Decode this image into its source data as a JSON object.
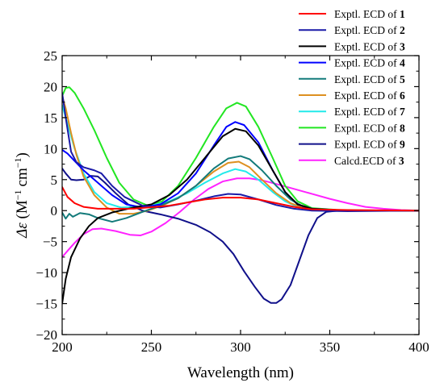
{
  "chart_data": {
    "type": "line",
    "xlabel": "Wavelength (nm)",
    "ylabel_symbol": "Δε",
    "ylabel_unit_1": "M",
    "ylabel_exp_1": "−1",
    "ylabel_unit_2": "cm",
    "ylabel_exp_2": "−1",
    "xlim": [
      200,
      400
    ],
    "ylim": [
      -20,
      25
    ],
    "x_ticks": [
      200,
      250,
      300,
      350,
      400
    ],
    "y_ticks": [
      -20,
      -15,
      -10,
      -5,
      0,
      5,
      10,
      15,
      20,
      25
    ],
    "x_tick_labels": [
      "200",
      "250",
      "300",
      "350",
      "400"
    ],
    "y_tick_labels": [
      "−20",
      "−15",
      "−10",
      "−5",
      "0",
      "5",
      "10",
      "15",
      "20",
      "25"
    ],
    "grid": false,
    "legend_position": "top-right",
    "series": [
      {
        "name": "Exptl. ECD of ",
        "bold": "1",
        "color": "#ff0000",
        "points": [
          [
            200,
            3.8
          ],
          [
            203,
            2.2
          ],
          [
            207,
            1.2
          ],
          [
            212,
            0.6
          ],
          [
            220,
            0.3
          ],
          [
            240,
            0.3
          ],
          [
            260,
            0.8
          ],
          [
            280,
            1.8
          ],
          [
            290,
            2.1
          ],
          [
            300,
            2.1
          ],
          [
            310,
            1.8
          ],
          [
            320,
            1.2
          ],
          [
            330,
            0.6
          ],
          [
            340,
            0.2
          ],
          [
            360,
            0.1
          ],
          [
            400,
            0.0
          ]
        ]
      },
      {
        "name": "Exptl. ECD of ",
        "bold": "2",
        "color": "#1a1aa8",
        "points": [
          [
            200,
            19.0
          ],
          [
            202,
            15.0
          ],
          [
            205,
            9.5
          ],
          [
            208,
            7.8
          ],
          [
            212,
            7.0
          ],
          [
            218,
            6.5
          ],
          [
            222,
            6.0
          ],
          [
            228,
            4.0
          ],
          [
            235,
            2.2
          ],
          [
            245,
            0.8
          ],
          [
            255,
            0.5
          ],
          [
            265,
            1.0
          ],
          [
            275,
            1.6
          ],
          [
            285,
            2.3
          ],
          [
            293,
            2.7
          ],
          [
            300,
            2.6
          ],
          [
            310,
            1.8
          ],
          [
            320,
            0.9
          ],
          [
            330,
            0.3
          ],
          [
            340,
            0.0
          ],
          [
            360,
            -0.1
          ],
          [
            400,
            0.0
          ]
        ]
      },
      {
        "name": "Exptl. ECD of ",
        "bold": "3",
        "color": "#000000",
        "points": [
          [
            200,
            -15.0
          ],
          [
            202,
            -11.0
          ],
          [
            205,
            -7.5
          ],
          [
            210,
            -4.5
          ],
          [
            215,
            -2.5
          ],
          [
            220,
            -1.2
          ],
          [
            228,
            -0.3
          ],
          [
            240,
            0.5
          ],
          [
            250,
            1.0
          ],
          [
            260,
            2.5
          ],
          [
            270,
            5.0
          ],
          [
            280,
            8.5
          ],
          [
            290,
            12.0
          ],
          [
            297,
            13.2
          ],
          [
            303,
            12.8
          ],
          [
            310,
            10.5
          ],
          [
            318,
            6.5
          ],
          [
            325,
            3.0
          ],
          [
            332,
            1.0
          ],
          [
            340,
            0.3
          ],
          [
            360,
            0.0
          ],
          [
            400,
            0.0
          ]
        ]
      },
      {
        "name": "Exptl. ECD of ",
        "bold": "4",
        "color": "#0000ff",
        "points": [
          [
            200,
            9.8
          ],
          [
            203,
            9.2
          ],
          [
            207,
            8.0
          ],
          [
            212,
            6.5
          ],
          [
            220,
            4.5
          ],
          [
            228,
            2.5
          ],
          [
            236,
            1.0
          ],
          [
            245,
            0.5
          ],
          [
            255,
            1.0
          ],
          [
            265,
            2.8
          ],
          [
            275,
            6.0
          ],
          [
            285,
            10.5
          ],
          [
            292,
            13.5
          ],
          [
            297,
            14.3
          ],
          [
            302,
            13.8
          ],
          [
            310,
            11.0
          ],
          [
            318,
            6.5
          ],
          [
            325,
            3.0
          ],
          [
            332,
            1.0
          ],
          [
            340,
            0.3
          ],
          [
            360,
            0.0
          ],
          [
            400,
            0.0
          ]
        ]
      },
      {
        "name": "Exptl. ECD of ",
        "bold": "5",
        "color": "#127a7a",
        "points": [
          [
            200,
            -0.3
          ],
          [
            202,
            -1.3
          ],
          [
            204,
            -0.5
          ],
          [
            206,
            -1.0
          ],
          [
            210,
            -0.4
          ],
          [
            215,
            -0.6
          ],
          [
            220,
            -1.2
          ],
          [
            228,
            -1.8
          ],
          [
            236,
            -1.2
          ],
          [
            245,
            -0.2
          ],
          [
            255,
            0.8
          ],
          [
            265,
            2.0
          ],
          [
            275,
            4.0
          ],
          [
            285,
            6.8
          ],
          [
            293,
            8.4
          ],
          [
            300,
            8.8
          ],
          [
            305,
            8.3
          ],
          [
            312,
            6.5
          ],
          [
            320,
            4.0
          ],
          [
            328,
            1.8
          ],
          [
            336,
            0.5
          ],
          [
            345,
            0.1
          ],
          [
            360,
            0.0
          ],
          [
            400,
            0.0
          ]
        ]
      },
      {
        "name": "Exptl. ECD of ",
        "bold": "6",
        "color": "#dd9020",
        "points": [
          [
            200,
            18.5
          ],
          [
            202,
            16.5
          ],
          [
            205,
            12.5
          ],
          [
            208,
            9.0
          ],
          [
            212,
            5.5
          ],
          [
            218,
            2.5
          ],
          [
            225,
            0.5
          ],
          [
            232,
            -0.5
          ],
          [
            240,
            -0.5
          ],
          [
            248,
            0.0
          ],
          [
            256,
            0.8
          ],
          [
            265,
            2.0
          ],
          [
            275,
            4.0
          ],
          [
            285,
            6.3
          ],
          [
            293,
            7.7
          ],
          [
            299,
            7.9
          ],
          [
            305,
            7.0
          ],
          [
            312,
            5.0
          ],
          [
            320,
            2.8
          ],
          [
            328,
            1.2
          ],
          [
            336,
            0.4
          ],
          [
            345,
            0.1
          ],
          [
            360,
            0.0
          ],
          [
            400,
            0.0
          ]
        ]
      },
      {
        "name": "Exptl. ECD of ",
        "bold": "7",
        "color": "#22eaea",
        "points": [
          [
            200,
            17.0
          ],
          [
            203,
            14.0
          ],
          [
            207,
            10.0
          ],
          [
            212,
            6.0
          ],
          [
            218,
            3.0
          ],
          [
            225,
            1.2
          ],
          [
            233,
            0.5
          ],
          [
            240,
            0.6
          ],
          [
            250,
            0.8
          ],
          [
            260,
            1.5
          ],
          [
            270,
            2.8
          ],
          [
            280,
            4.5
          ],
          [
            290,
            6.0
          ],
          [
            297,
            6.7
          ],
          [
            303,
            6.3
          ],
          [
            310,
            5.0
          ],
          [
            318,
            3.0
          ],
          [
            325,
            1.5
          ],
          [
            332,
            0.6
          ],
          [
            340,
            0.2
          ],
          [
            360,
            0.0
          ],
          [
            400,
            0.0
          ]
        ]
      },
      {
        "name": "Exptl. ECD of ",
        "bold": "8",
        "color": "#22e622",
        "points": [
          [
            200,
            18.5
          ],
          [
            202,
            19.8
          ],
          [
            204,
            19.9
          ],
          [
            207,
            19.0
          ],
          [
            212,
            16.5
          ],
          [
            218,
            13.0
          ],
          [
            225,
            8.5
          ],
          [
            232,
            4.5
          ],
          [
            240,
            1.8
          ],
          [
            248,
            0.8
          ],
          [
            256,
            1.5
          ],
          [
            265,
            4.0
          ],
          [
            275,
            8.5
          ],
          [
            285,
            13.5
          ],
          [
            292,
            16.5
          ],
          [
            298,
            17.4
          ],
          [
            303,
            16.8
          ],
          [
            310,
            13.5
          ],
          [
            318,
            8.5
          ],
          [
            325,
            4.0
          ],
          [
            332,
            1.5
          ],
          [
            340,
            0.4
          ],
          [
            360,
            0.0
          ],
          [
            400,
            0.0
          ]
        ]
      },
      {
        "name": "Exptl. ECD of ",
        "bold": "9",
        "color": "#10108a",
        "points": [
          [
            200,
            6.8
          ],
          [
            202,
            6.0
          ],
          [
            205,
            5.0
          ],
          [
            208,
            4.9
          ],
          [
            212,
            5.0
          ],
          [
            216,
            5.6
          ],
          [
            220,
            5.5
          ],
          [
            224,
            4.5
          ],
          [
            230,
            2.8
          ],
          [
            237,
            1.0
          ],
          [
            245,
            0.0
          ],
          [
            255,
            -0.6
          ],
          [
            265,
            -1.3
          ],
          [
            275,
            -2.3
          ],
          [
            283,
            -3.5
          ],
          [
            290,
            -5.0
          ],
          [
            296,
            -7.0
          ],
          [
            302,
            -9.8
          ],
          [
            308,
            -12.3
          ],
          [
            313,
            -14.2
          ],
          [
            317,
            -14.9
          ],
          [
            320,
            -14.9
          ],
          [
            323,
            -14.3
          ],
          [
            328,
            -12.0
          ],
          [
            333,
            -8.0
          ],
          [
            338,
            -4.0
          ],
          [
            343,
            -1.2
          ],
          [
            348,
            -0.2
          ],
          [
            355,
            0.0
          ],
          [
            400,
            0.0
          ]
        ]
      },
      {
        "name": "Calcd.ECD of ",
        "bold": "3",
        "color": "#ff22ff",
        "points": [
          [
            200,
            -7.5
          ],
          [
            203,
            -6.5
          ],
          [
            207,
            -5.2
          ],
          [
            212,
            -3.8
          ],
          [
            217,
            -3.0
          ],
          [
            222,
            -2.9
          ],
          [
            230,
            -3.3
          ],
          [
            238,
            -3.9
          ],
          [
            244,
            -4.0
          ],
          [
            250,
            -3.4
          ],
          [
            258,
            -2.0
          ],
          [
            266,
            -0.2
          ],
          [
            274,
            1.8
          ],
          [
            282,
            3.5
          ],
          [
            290,
            4.7
          ],
          [
            298,
            5.2
          ],
          [
            305,
            5.2
          ],
          [
            312,
            4.9
          ],
          [
            320,
            4.3
          ],
          [
            330,
            3.5
          ],
          [
            340,
            2.7
          ],
          [
            350,
            1.9
          ],
          [
            360,
            1.2
          ],
          [
            370,
            0.6
          ],
          [
            380,
            0.3
          ],
          [
            390,
            0.1
          ],
          [
            400,
            0.0
          ]
        ]
      }
    ]
  }
}
